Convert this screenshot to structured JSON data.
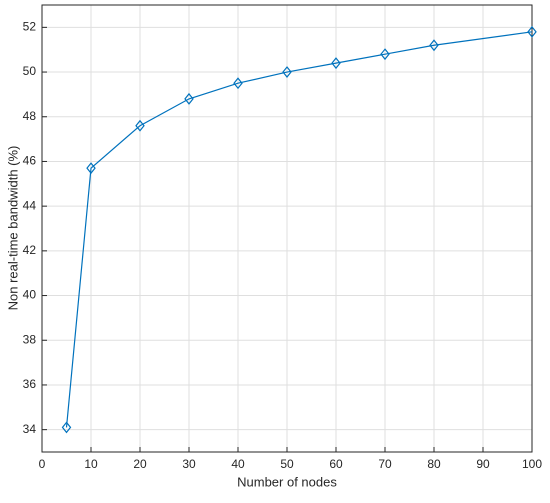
{
  "chart_data": {
    "type": "line",
    "x": [
      5,
      10,
      20,
      30,
      40,
      50,
      60,
      70,
      80,
      100
    ],
    "series": [
      {
        "color": "#0072bd",
        "values": [
          34.1,
          45.7,
          47.6,
          48.8,
          49.5,
          50.0,
          50.4,
          50.8,
          51.2,
          51.8
        ]
      }
    ],
    "xlabel": "Number of nodes",
    "ylabel": "Non real-time bandwidth (%)",
    "xlim": [
      0,
      100
    ],
    "xticks": [
      0,
      10,
      20,
      30,
      40,
      50,
      60,
      70,
      80,
      90,
      100
    ],
    "ylim": [
      33,
      53
    ],
    "yticks": [
      34,
      36,
      38,
      40,
      42,
      44,
      46,
      48,
      50,
      52
    ],
    "grid": true,
    "marker": "diamond"
  }
}
